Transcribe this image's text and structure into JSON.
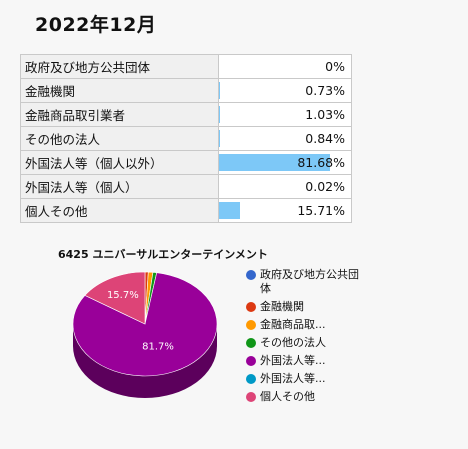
{
  "page": {
    "title": "2022年12月"
  },
  "table": {
    "rows": [
      {
        "label": "政府及び地方公共団体",
        "value_text": "0%",
        "value": 0
      },
      {
        "label": "金融機関",
        "value_text": "0.73%",
        "value": 0.73
      },
      {
        "label": "金融商品取引業者",
        "value_text": "1.03%",
        "value": 1.03
      },
      {
        "label": "その他の法人",
        "value_text": "0.84%",
        "value": 0.84
      },
      {
        "label": "外国法人等（個人以外）",
        "value_text": "81.68%",
        "value": 81.68
      },
      {
        "label": "外国法人等（個人）",
        "value_text": "0.02%",
        "value": 0.02
      },
      {
        "label": "個人その他",
        "value_text": "15.71%",
        "value": 15.71
      }
    ]
  },
  "chart_data": {
    "type": "pie",
    "title": "6425 ユニバーサルエンターテインメント",
    "categories": [
      "政府及び地方公共団体",
      "金融機関",
      "金融商品取引業者",
      "その他の法人",
      "外国法人等（個人以外）",
      "外国法人等（個人）",
      "個人その他"
    ],
    "values": [
      0,
      0.73,
      1.03,
      0.84,
      81.68,
      0.02,
      15.71
    ],
    "colors": [
      "#3366cc",
      "#dc3912",
      "#ff9900",
      "#109618",
      "#990099",
      "#0099c6",
      "#dd4477"
    ],
    "slice_labels": [
      "",
      "",
      "",
      "",
      "81.7%",
      "",
      "15.7%"
    ],
    "legend": {
      "position": "right",
      "entries": [
        "政府及び地方公共団体",
        "金融機関",
        "金融商品取...",
        "その他の法人",
        "外国法人等...",
        "外国法人等...",
        "個人その他"
      ]
    },
    "style": "3d"
  }
}
